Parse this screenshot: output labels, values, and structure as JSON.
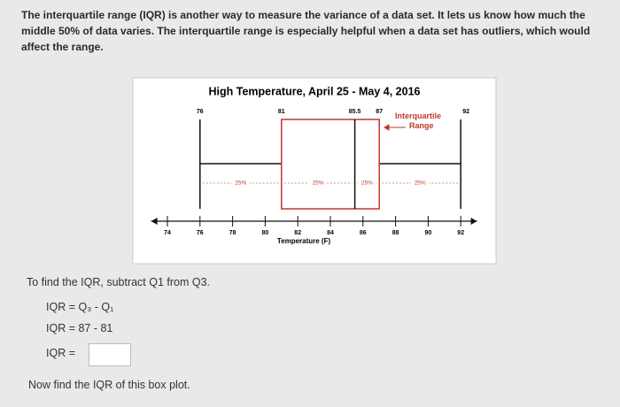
{
  "intro": "The interquartile range (IQR) is another way to measure the variance of a data set. It lets us know how much the middle 50% of data varies. The interquartile range is especially helpful when a data set has outliers, which would affect the range.",
  "chart_data": {
    "type": "box",
    "title": "High Temperature, April 25 - May 4, 2016",
    "xlabel": "Temperature (F)",
    "min": 76,
    "q1": 81,
    "median": 85.5,
    "q3": 87,
    "max": 92,
    "xlim": [
      73,
      93
    ],
    "xticks": [
      74,
      76,
      78,
      80,
      82,
      84,
      86,
      88,
      90,
      92
    ],
    "annotation": "Interquartile Range",
    "quartile_labels": [
      "25%",
      "25%",
      "25%",
      "25%"
    ],
    "box_color": "#c0392b",
    "whisker_color": "#111111"
  },
  "steps": [
    "To find the IQR, subtract Q1 from Q3.",
    "IQR = Q₃ - Q₁",
    "IQR = 87 - 81",
    "IQR ="
  ],
  "prompt": "Now find the IQR of this box plot."
}
